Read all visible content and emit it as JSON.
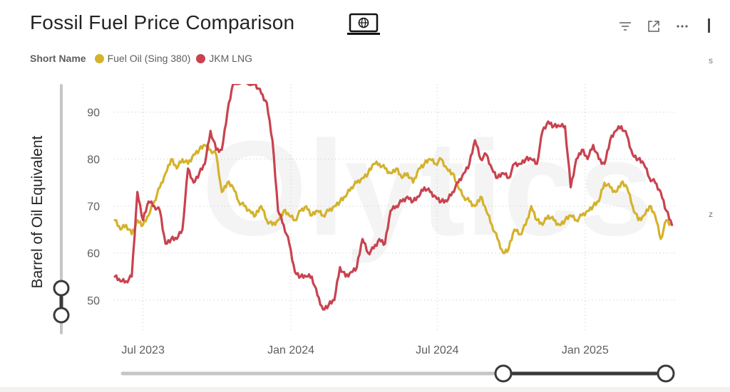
{
  "header": {
    "title": "Fossil Fuel Price Comparison",
    "monitor_icon": "monitor-globe-icon",
    "icons": [
      "filter-icon",
      "focus-mode-icon",
      "more-options-icon"
    ]
  },
  "legend": {
    "title": "Short Name",
    "items": [
      {
        "label": "Fuel Oil (Sing 380)",
        "color": "#d4b22c"
      },
      {
        "label": "JKM LNG",
        "color": "#c8434f"
      }
    ]
  },
  "chart_data": {
    "type": "line",
    "ylabel": "Barrel of Oil Equivalent",
    "xlabel": "",
    "ylim": [
      43,
      96
    ],
    "yticks": [
      50,
      60,
      70,
      80,
      90
    ],
    "x_range": [
      "2023-05-26",
      "2025-04-22"
    ],
    "xticks": [
      {
        "date": "2023-07-01",
        "label": "Jul 2023"
      },
      {
        "date": "2024-01-01",
        "label": "Jan 2024"
      },
      {
        "date": "2024-07-01",
        "label": "Jul 2024"
      },
      {
        "date": "2025-01-01",
        "label": "Jan 2025"
      }
    ],
    "grid": true,
    "series": [
      {
        "name": "Fuel Oil (Sing 380)",
        "color": "#d4b22c",
        "points": [
          [
            "2023-05-27",
            67
          ],
          [
            "2023-06-03",
            65
          ],
          [
            "2023-06-10",
            66
          ],
          [
            "2023-06-17",
            64
          ],
          [
            "2023-06-24",
            67
          ],
          [
            "2023-07-01",
            66
          ],
          [
            "2023-07-08",
            68
          ],
          [
            "2023-07-15",
            71
          ],
          [
            "2023-07-22",
            74
          ],
          [
            "2023-07-29",
            77
          ],
          [
            "2023-08-05",
            80
          ],
          [
            "2023-08-12",
            78
          ],
          [
            "2023-08-19",
            80
          ],
          [
            "2023-08-26",
            79
          ],
          [
            "2023-09-02",
            81
          ],
          [
            "2023-09-09",
            82
          ],
          [
            "2023-09-16",
            83
          ],
          [
            "2023-09-23",
            82
          ],
          [
            "2023-09-30",
            81
          ],
          [
            "2023-10-07",
            73
          ],
          [
            "2023-10-14",
            75
          ],
          [
            "2023-10-21",
            74
          ],
          [
            "2023-10-28",
            71
          ],
          [
            "2023-11-04",
            70
          ],
          [
            "2023-11-11",
            69
          ],
          [
            "2023-11-18",
            68
          ],
          [
            "2023-11-25",
            70
          ],
          [
            "2023-12-02",
            67
          ],
          [
            "2023-12-09",
            66
          ],
          [
            "2023-12-16",
            67
          ],
          [
            "2023-12-23",
            69
          ],
          [
            "2023-12-30",
            68
          ],
          [
            "2024-01-06",
            67
          ],
          [
            "2024-01-13",
            69
          ],
          [
            "2024-01-20",
            70
          ],
          [
            "2024-01-27",
            68
          ],
          [
            "2024-02-03",
            69
          ],
          [
            "2024-02-10",
            68
          ],
          [
            "2024-02-17",
            69
          ],
          [
            "2024-02-24",
            70
          ],
          [
            "2024-03-02",
            71
          ],
          [
            "2024-03-09",
            72
          ],
          [
            "2024-03-16",
            74
          ],
          [
            "2024-03-23",
            75
          ],
          [
            "2024-03-30",
            76
          ],
          [
            "2024-04-06",
            77
          ],
          [
            "2024-04-13",
            79
          ],
          [
            "2024-04-20",
            79
          ],
          [
            "2024-04-27",
            78
          ],
          [
            "2024-05-04",
            77
          ],
          [
            "2024-05-11",
            78
          ],
          [
            "2024-05-18",
            76
          ],
          [
            "2024-05-25",
            77
          ],
          [
            "2024-06-01",
            75
          ],
          [
            "2024-06-08",
            78
          ],
          [
            "2024-06-15",
            79
          ],
          [
            "2024-06-22",
            80
          ],
          [
            "2024-06-29",
            79
          ],
          [
            "2024-07-06",
            80
          ],
          [
            "2024-07-13",
            78
          ],
          [
            "2024-07-20",
            77
          ],
          [
            "2024-07-27",
            74
          ],
          [
            "2024-08-03",
            72
          ],
          [
            "2024-08-10",
            71
          ],
          [
            "2024-08-17",
            70
          ],
          [
            "2024-08-24",
            72
          ],
          [
            "2024-08-31",
            69
          ],
          [
            "2024-09-07",
            66
          ],
          [
            "2024-09-14",
            63
          ],
          [
            "2024-09-21",
            60
          ],
          [
            "2024-09-28",
            61
          ],
          [
            "2024-10-05",
            65
          ],
          [
            "2024-10-12",
            64
          ],
          [
            "2024-10-19",
            66
          ],
          [
            "2024-10-26",
            70
          ],
          [
            "2024-11-02",
            67
          ],
          [
            "2024-11-09",
            66
          ],
          [
            "2024-11-16",
            68
          ],
          [
            "2024-11-23",
            67
          ],
          [
            "2024-11-30",
            66
          ],
          [
            "2024-12-07",
            67
          ],
          [
            "2024-12-14",
            68
          ],
          [
            "2024-12-21",
            67
          ],
          [
            "2024-12-28",
            68
          ],
          [
            "2025-01-04",
            69
          ],
          [
            "2025-01-11",
            70
          ],
          [
            "2025-01-18",
            71
          ],
          [
            "2025-01-25",
            75
          ],
          [
            "2025-02-01",
            74
          ],
          [
            "2025-02-08",
            73
          ],
          [
            "2025-02-15",
            75
          ],
          [
            "2025-02-22",
            74
          ],
          [
            "2025-03-01",
            70
          ],
          [
            "2025-03-08",
            67
          ],
          [
            "2025-03-15",
            68
          ],
          [
            "2025-03-22",
            70
          ],
          [
            "2025-03-29",
            68
          ],
          [
            "2025-04-05",
            63
          ],
          [
            "2025-04-12",
            67
          ],
          [
            "2025-04-19",
            66
          ]
        ]
      },
      {
        "name": "JKM LNG",
        "color": "#c8434f",
        "points": [
          [
            "2023-05-27",
            55
          ],
          [
            "2023-06-03",
            54
          ],
          [
            "2023-06-10",
            54
          ],
          [
            "2023-06-17",
            55
          ],
          [
            "2023-06-24",
            73
          ],
          [
            "2023-07-01",
            67
          ],
          [
            "2023-07-08",
            71
          ],
          [
            "2023-07-15",
            70
          ],
          [
            "2023-07-22",
            69
          ],
          [
            "2023-07-29",
            62
          ],
          [
            "2023-08-05",
            63
          ],
          [
            "2023-08-12",
            63
          ],
          [
            "2023-08-19",
            65
          ],
          [
            "2023-08-26",
            78
          ],
          [
            "2023-09-02",
            75
          ],
          [
            "2023-09-09",
            77
          ],
          [
            "2023-09-16",
            79
          ],
          [
            "2023-09-23",
            86
          ],
          [
            "2023-09-30",
            82
          ],
          [
            "2023-10-07",
            82
          ],
          [
            "2023-10-14",
            90
          ],
          [
            "2023-10-21",
            96
          ],
          [
            "2023-11-18",
            96
          ],
          [
            "2023-11-25",
            94
          ],
          [
            "2023-12-02",
            92
          ],
          [
            "2023-12-09",
            84
          ],
          [
            "2023-12-16",
            69
          ],
          [
            "2023-12-23",
            66
          ],
          [
            "2023-12-30",
            62
          ],
          [
            "2024-01-06",
            56
          ],
          [
            "2024-01-13",
            55
          ],
          [
            "2024-01-20",
            55
          ],
          [
            "2024-01-27",
            55
          ],
          [
            "2024-02-03",
            51
          ],
          [
            "2024-02-10",
            48
          ],
          [
            "2024-02-17",
            49
          ],
          [
            "2024-02-24",
            50
          ],
          [
            "2024-03-02",
            57
          ],
          [
            "2024-03-09",
            55
          ],
          [
            "2024-03-16",
            56
          ],
          [
            "2024-03-23",
            57
          ],
          [
            "2024-03-30",
            63
          ],
          [
            "2024-04-06",
            60
          ],
          [
            "2024-04-13",
            61
          ],
          [
            "2024-04-20",
            63
          ],
          [
            "2024-04-27",
            62
          ],
          [
            "2024-05-04",
            69
          ],
          [
            "2024-05-11",
            70
          ],
          [
            "2024-05-18",
            71
          ],
          [
            "2024-05-25",
            72
          ],
          [
            "2024-06-01",
            71
          ],
          [
            "2024-06-08",
            72
          ],
          [
            "2024-06-15",
            74
          ],
          [
            "2024-06-22",
            73
          ],
          [
            "2024-06-29",
            72
          ],
          [
            "2024-07-06",
            71
          ],
          [
            "2024-07-13",
            71
          ],
          [
            "2024-07-20",
            73
          ],
          [
            "2024-07-27",
            75
          ],
          [
            "2024-08-03",
            77
          ],
          [
            "2024-08-10",
            79
          ],
          [
            "2024-08-17",
            84
          ],
          [
            "2024-08-24",
            80
          ],
          [
            "2024-08-31",
            81
          ],
          [
            "2024-09-07",
            78
          ],
          [
            "2024-09-14",
            76
          ],
          [
            "2024-09-21",
            77
          ],
          [
            "2024-09-28",
            76
          ],
          [
            "2024-10-05",
            79
          ],
          [
            "2024-10-12",
            79
          ],
          [
            "2024-10-19",
            80
          ],
          [
            "2024-10-26",
            80
          ],
          [
            "2024-11-02",
            79
          ],
          [
            "2024-11-09",
            86
          ],
          [
            "2024-11-16",
            88
          ],
          [
            "2024-11-23",
            87
          ],
          [
            "2024-11-30",
            87
          ],
          [
            "2024-12-07",
            87
          ],
          [
            "2024-12-14",
            74
          ],
          [
            "2024-12-21",
            80
          ],
          [
            "2024-12-28",
            82
          ],
          [
            "2025-01-04",
            80
          ],
          [
            "2025-01-11",
            83
          ],
          [
            "2025-01-18",
            80
          ],
          [
            "2025-01-25",
            79
          ],
          [
            "2025-02-01",
            84
          ],
          [
            "2025-02-08",
            86
          ],
          [
            "2025-02-15",
            87
          ],
          [
            "2025-02-22",
            85
          ],
          [
            "2025-03-01",
            81
          ],
          [
            "2025-03-08",
            80
          ],
          [
            "2025-03-15",
            79
          ],
          [
            "2025-03-22",
            76
          ],
          [
            "2025-03-29",
            75
          ],
          [
            "2025-04-05",
            73
          ],
          [
            "2025-04-12",
            69
          ],
          [
            "2025-04-19",
            66
          ]
        ]
      }
    ]
  },
  "watermark": "Olytics",
  "edge_marks": [
    "s",
    "z"
  ]
}
